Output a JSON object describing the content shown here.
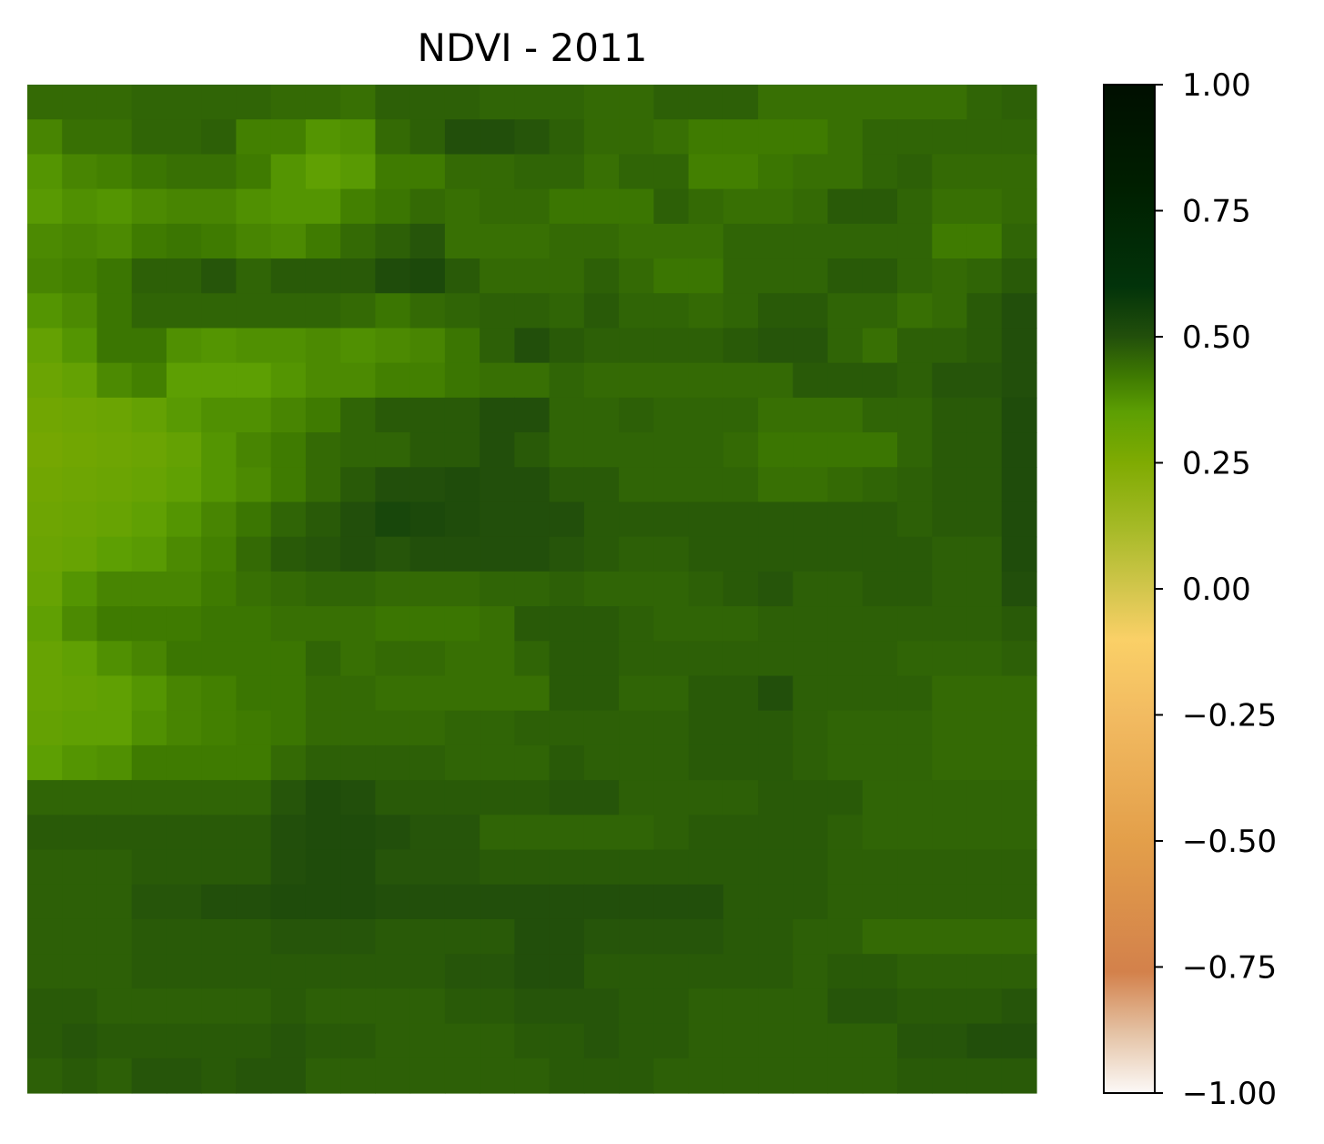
{
  "chart_data": {
    "type": "heatmap",
    "title": "NDVI - 2011",
    "xlabel": "",
    "ylabel": "",
    "axes_visible": false,
    "grid": false,
    "colorbar": {
      "position": "right",
      "vmin": -1.0,
      "vmax": 1.0,
      "ticks": [
        1.0,
        0.75,
        0.5,
        0.25,
        0.0,
        -0.25,
        -0.5,
        -0.75,
        -1.0
      ],
      "tick_labels": [
        "1.00",
        "0.75",
        "0.50",
        "0.25",
        "0.00",
        "−0.25",
        "−0.50",
        "−0.75",
        "−1.00"
      ],
      "colormap": [
        [
          -1.0,
          "#fcf9f7"
        ],
        [
          -0.88,
          "#e4c2a4"
        ],
        [
          -0.76,
          "#d3814b"
        ],
        [
          -0.5,
          "#e39f4a"
        ],
        [
          -0.25,
          "#f2bb61"
        ],
        [
          -0.1,
          "#fad067"
        ],
        [
          0.0,
          "#d2c64c"
        ],
        [
          0.12,
          "#a6ba27"
        ],
        [
          0.25,
          "#7fab02"
        ],
        [
          0.35,
          "#5d9f03"
        ],
        [
          0.42,
          "#3f7b01"
        ],
        [
          0.5,
          "#224f0b"
        ],
        [
          0.6,
          "#02330a"
        ],
        [
          0.8,
          "#001f00"
        ],
        [
          1.0,
          "#000f00"
        ]
      ]
    },
    "grid_size": [
      29,
      29
    ],
    "values": [
      [
        0.45,
        0.45,
        0.45,
        0.46,
        0.46,
        0.46,
        0.46,
        0.45,
        0.45,
        0.44,
        0.47,
        0.47,
        0.47,
        0.46,
        0.46,
        0.46,
        0.45,
        0.45,
        0.47,
        0.47,
        0.47,
        0.44,
        0.44,
        0.44,
        0.44,
        0.44,
        0.44,
        0.46,
        0.47
      ],
      [
        0.4,
        0.44,
        0.44,
        0.46,
        0.46,
        0.47,
        0.41,
        0.41,
        0.37,
        0.38,
        0.45,
        0.47,
        0.5,
        0.5,
        0.49,
        0.47,
        0.45,
        0.45,
        0.44,
        0.42,
        0.42,
        0.42,
        0.42,
        0.44,
        0.46,
        0.46,
        0.46,
        0.46,
        0.46
      ],
      [
        0.37,
        0.4,
        0.41,
        0.43,
        0.44,
        0.44,
        0.42,
        0.37,
        0.34,
        0.36,
        0.42,
        0.42,
        0.45,
        0.45,
        0.46,
        0.46,
        0.44,
        0.46,
        0.46,
        0.41,
        0.41,
        0.43,
        0.44,
        0.44,
        0.46,
        0.47,
        0.45,
        0.45,
        0.45
      ],
      [
        0.36,
        0.38,
        0.37,
        0.39,
        0.4,
        0.4,
        0.38,
        0.37,
        0.37,
        0.41,
        0.43,
        0.45,
        0.44,
        0.45,
        0.45,
        0.43,
        0.43,
        0.43,
        0.47,
        0.45,
        0.44,
        0.44,
        0.45,
        0.48,
        0.48,
        0.46,
        0.44,
        0.44,
        0.45
      ],
      [
        0.39,
        0.4,
        0.39,
        0.42,
        0.43,
        0.42,
        0.4,
        0.39,
        0.42,
        0.45,
        0.47,
        0.49,
        0.44,
        0.44,
        0.44,
        0.45,
        0.45,
        0.44,
        0.44,
        0.44,
        0.46,
        0.46,
        0.46,
        0.46,
        0.46,
        0.46,
        0.42,
        0.42,
        0.46
      ],
      [
        0.4,
        0.41,
        0.43,
        0.47,
        0.47,
        0.49,
        0.46,
        0.48,
        0.48,
        0.48,
        0.51,
        0.52,
        0.48,
        0.45,
        0.45,
        0.45,
        0.47,
        0.45,
        0.43,
        0.43,
        0.46,
        0.46,
        0.46,
        0.48,
        0.48,
        0.46,
        0.45,
        0.46,
        0.48
      ],
      [
        0.37,
        0.39,
        0.43,
        0.46,
        0.46,
        0.46,
        0.46,
        0.46,
        0.46,
        0.45,
        0.43,
        0.45,
        0.46,
        0.47,
        0.47,
        0.46,
        0.48,
        0.46,
        0.46,
        0.45,
        0.46,
        0.48,
        0.48,
        0.46,
        0.46,
        0.44,
        0.45,
        0.48,
        0.5
      ],
      [
        0.33,
        0.37,
        0.43,
        0.43,
        0.38,
        0.37,
        0.38,
        0.38,
        0.39,
        0.38,
        0.39,
        0.4,
        0.43,
        0.47,
        0.5,
        0.48,
        0.47,
        0.47,
        0.47,
        0.47,
        0.48,
        0.49,
        0.49,
        0.46,
        0.44,
        0.47,
        0.47,
        0.48,
        0.5
      ],
      [
        0.31,
        0.33,
        0.39,
        0.41,
        0.35,
        0.35,
        0.35,
        0.37,
        0.39,
        0.39,
        0.41,
        0.41,
        0.43,
        0.44,
        0.44,
        0.46,
        0.45,
        0.45,
        0.45,
        0.45,
        0.45,
        0.45,
        0.48,
        0.48,
        0.48,
        0.47,
        0.49,
        0.49,
        0.5
      ],
      [
        0.29,
        0.3,
        0.31,
        0.33,
        0.36,
        0.38,
        0.38,
        0.4,
        0.42,
        0.46,
        0.48,
        0.48,
        0.48,
        0.5,
        0.5,
        0.46,
        0.46,
        0.47,
        0.46,
        0.46,
        0.46,
        0.44,
        0.44,
        0.44,
        0.46,
        0.46,
        0.48,
        0.48,
        0.51
      ],
      [
        0.28,
        0.29,
        0.3,
        0.31,
        0.33,
        0.37,
        0.4,
        0.42,
        0.45,
        0.46,
        0.46,
        0.48,
        0.48,
        0.5,
        0.48,
        0.46,
        0.46,
        0.46,
        0.46,
        0.46,
        0.45,
        0.43,
        0.43,
        0.43,
        0.43,
        0.46,
        0.48,
        0.48,
        0.51
      ],
      [
        0.29,
        0.3,
        0.31,
        0.32,
        0.34,
        0.37,
        0.39,
        0.42,
        0.45,
        0.48,
        0.5,
        0.5,
        0.51,
        0.5,
        0.5,
        0.48,
        0.48,
        0.46,
        0.46,
        0.46,
        0.46,
        0.44,
        0.44,
        0.45,
        0.46,
        0.47,
        0.48,
        0.48,
        0.51
      ],
      [
        0.3,
        0.31,
        0.32,
        0.34,
        0.37,
        0.4,
        0.43,
        0.46,
        0.48,
        0.5,
        0.53,
        0.52,
        0.51,
        0.5,
        0.5,
        0.5,
        0.48,
        0.48,
        0.48,
        0.48,
        0.48,
        0.48,
        0.48,
        0.48,
        0.48,
        0.47,
        0.48,
        0.48,
        0.51
      ],
      [
        0.31,
        0.32,
        0.35,
        0.36,
        0.39,
        0.41,
        0.45,
        0.48,
        0.49,
        0.5,
        0.49,
        0.5,
        0.5,
        0.5,
        0.5,
        0.49,
        0.48,
        0.47,
        0.47,
        0.48,
        0.48,
        0.48,
        0.48,
        0.48,
        0.48,
        0.48,
        0.47,
        0.47,
        0.51
      ],
      [
        0.32,
        0.37,
        0.4,
        0.4,
        0.4,
        0.42,
        0.44,
        0.45,
        0.46,
        0.46,
        0.45,
        0.45,
        0.45,
        0.46,
        0.46,
        0.47,
        0.46,
        0.46,
        0.46,
        0.47,
        0.48,
        0.49,
        0.47,
        0.47,
        0.48,
        0.48,
        0.47,
        0.47,
        0.5
      ],
      [
        0.34,
        0.39,
        0.42,
        0.42,
        0.42,
        0.43,
        0.43,
        0.44,
        0.44,
        0.44,
        0.43,
        0.43,
        0.43,
        0.44,
        0.48,
        0.48,
        0.48,
        0.47,
        0.46,
        0.46,
        0.46,
        0.47,
        0.47,
        0.47,
        0.47,
        0.47,
        0.47,
        0.47,
        0.48
      ],
      [
        0.32,
        0.34,
        0.38,
        0.4,
        0.43,
        0.43,
        0.43,
        0.43,
        0.46,
        0.44,
        0.45,
        0.45,
        0.44,
        0.44,
        0.46,
        0.48,
        0.48,
        0.47,
        0.47,
        0.47,
        0.47,
        0.47,
        0.47,
        0.47,
        0.47,
        0.46,
        0.46,
        0.46,
        0.47
      ],
      [
        0.32,
        0.33,
        0.34,
        0.37,
        0.4,
        0.41,
        0.43,
        0.43,
        0.45,
        0.45,
        0.44,
        0.44,
        0.44,
        0.44,
        0.44,
        0.48,
        0.48,
        0.46,
        0.46,
        0.48,
        0.48,
        0.5,
        0.47,
        0.47,
        0.47,
        0.47,
        0.45,
        0.45,
        0.45
      ],
      [
        0.33,
        0.34,
        0.34,
        0.38,
        0.4,
        0.41,
        0.42,
        0.43,
        0.45,
        0.45,
        0.45,
        0.45,
        0.46,
        0.46,
        0.47,
        0.47,
        0.47,
        0.47,
        0.47,
        0.48,
        0.48,
        0.48,
        0.47,
        0.46,
        0.46,
        0.46,
        0.45,
        0.45,
        0.45
      ],
      [
        0.35,
        0.37,
        0.38,
        0.42,
        0.42,
        0.42,
        0.42,
        0.45,
        0.47,
        0.47,
        0.47,
        0.47,
        0.46,
        0.46,
        0.46,
        0.48,
        0.47,
        0.47,
        0.47,
        0.48,
        0.48,
        0.48,
        0.47,
        0.46,
        0.46,
        0.46,
        0.45,
        0.45,
        0.45
      ],
      [
        0.46,
        0.46,
        0.46,
        0.46,
        0.46,
        0.46,
        0.46,
        0.49,
        0.51,
        0.5,
        0.48,
        0.48,
        0.48,
        0.48,
        0.48,
        0.49,
        0.49,
        0.47,
        0.47,
        0.47,
        0.47,
        0.48,
        0.48,
        0.48,
        0.46,
        0.46,
        0.46,
        0.46,
        0.46
      ],
      [
        0.48,
        0.48,
        0.48,
        0.48,
        0.48,
        0.48,
        0.48,
        0.5,
        0.51,
        0.51,
        0.5,
        0.49,
        0.49,
        0.46,
        0.46,
        0.46,
        0.46,
        0.46,
        0.47,
        0.48,
        0.48,
        0.48,
        0.48,
        0.47,
        0.46,
        0.46,
        0.46,
        0.46,
        0.46
      ],
      [
        0.47,
        0.47,
        0.47,
        0.48,
        0.48,
        0.48,
        0.48,
        0.5,
        0.51,
        0.51,
        0.49,
        0.49,
        0.49,
        0.48,
        0.48,
        0.48,
        0.48,
        0.48,
        0.48,
        0.48,
        0.48,
        0.48,
        0.48,
        0.47,
        0.47,
        0.47,
        0.47,
        0.47,
        0.47
      ],
      [
        0.47,
        0.47,
        0.47,
        0.49,
        0.49,
        0.5,
        0.5,
        0.51,
        0.51,
        0.51,
        0.5,
        0.5,
        0.5,
        0.5,
        0.5,
        0.5,
        0.5,
        0.5,
        0.5,
        0.5,
        0.48,
        0.48,
        0.48,
        0.47,
        0.47,
        0.47,
        0.47,
        0.47,
        0.47
      ],
      [
        0.47,
        0.47,
        0.47,
        0.48,
        0.48,
        0.48,
        0.48,
        0.49,
        0.49,
        0.49,
        0.48,
        0.48,
        0.48,
        0.48,
        0.5,
        0.5,
        0.49,
        0.49,
        0.49,
        0.49,
        0.48,
        0.48,
        0.47,
        0.47,
        0.45,
        0.45,
        0.45,
        0.45,
        0.45
      ],
      [
        0.47,
        0.47,
        0.47,
        0.48,
        0.48,
        0.48,
        0.48,
        0.48,
        0.48,
        0.48,
        0.48,
        0.48,
        0.49,
        0.49,
        0.5,
        0.5,
        0.48,
        0.48,
        0.48,
        0.48,
        0.48,
        0.48,
        0.47,
        0.48,
        0.48,
        0.47,
        0.47,
        0.47,
        0.47
      ],
      [
        0.48,
        0.48,
        0.47,
        0.47,
        0.47,
        0.47,
        0.47,
        0.48,
        0.47,
        0.47,
        0.47,
        0.47,
        0.48,
        0.48,
        0.49,
        0.49,
        0.49,
        0.48,
        0.48,
        0.47,
        0.47,
        0.47,
        0.47,
        0.49,
        0.49,
        0.48,
        0.48,
        0.48,
        0.49
      ],
      [
        0.48,
        0.49,
        0.48,
        0.48,
        0.48,
        0.48,
        0.48,
        0.49,
        0.48,
        0.48,
        0.47,
        0.47,
        0.47,
        0.47,
        0.48,
        0.48,
        0.49,
        0.48,
        0.48,
        0.47,
        0.47,
        0.47,
        0.47,
        0.47,
        0.47,
        0.49,
        0.49,
        0.5,
        0.5
      ],
      [
        0.47,
        0.48,
        0.47,
        0.49,
        0.49,
        0.48,
        0.49,
        0.49,
        0.47,
        0.47,
        0.47,
        0.47,
        0.47,
        0.47,
        0.47,
        0.48,
        0.48,
        0.48,
        0.47,
        0.47,
        0.47,
        0.47,
        0.47,
        0.47,
        0.47,
        0.48,
        0.48,
        0.48,
        0.48
      ]
    ]
  }
}
